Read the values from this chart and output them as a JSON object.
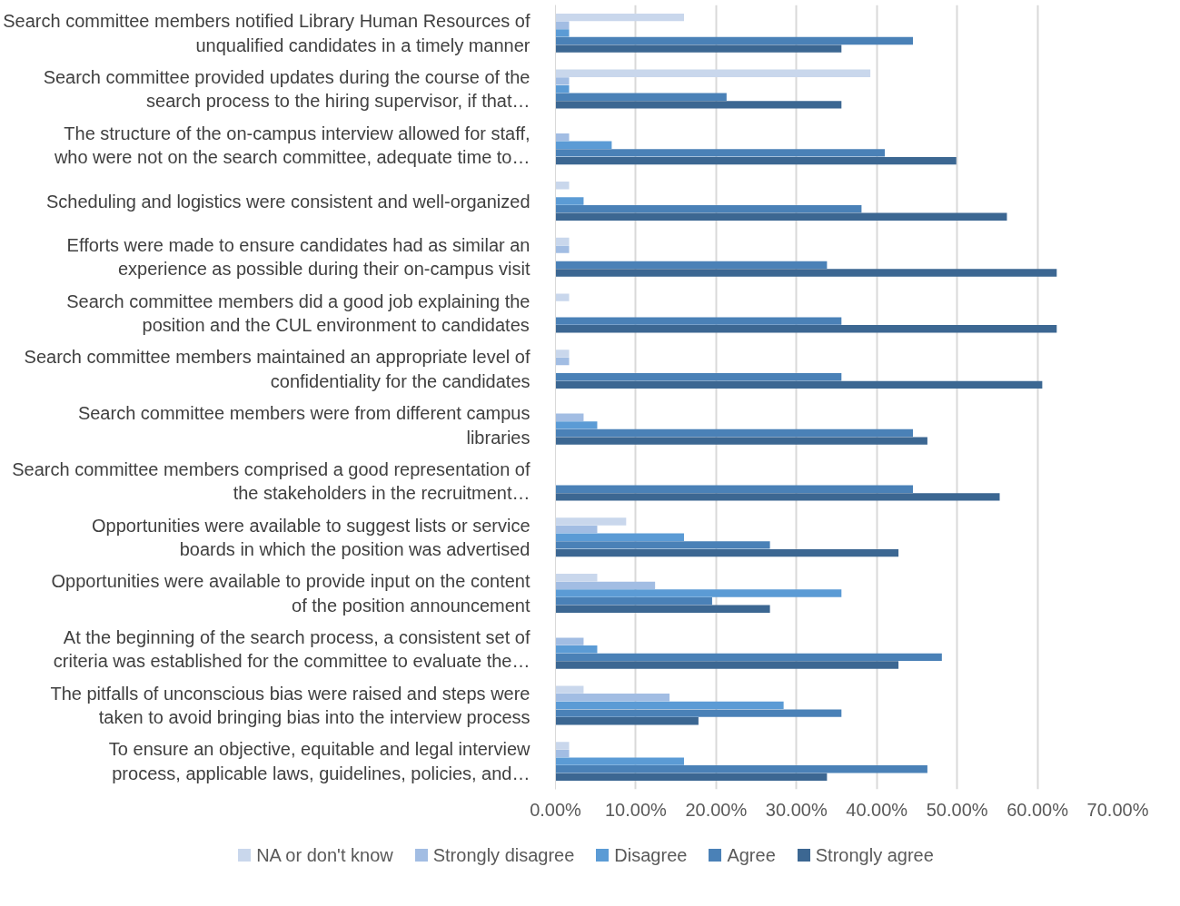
{
  "chart_data": {
    "type": "bar",
    "orientation": "horizontal",
    "categories": [
      "Search committee members notified Library Human Resources of unqualified candidates in a timely manner",
      "Search committee provided updates during the course of the search process to the hiring supervisor, if that…",
      "The structure of the on-campus interview allowed for staff, who were not on the search committee, adequate time to…",
      "Scheduling and logistics were consistent and well-organized",
      "Efforts were made to ensure candidates had as similar an experience as possible during their on-campus visit",
      "Search committee members did a good job explaining the position and the CUL environment to candidates",
      "Search committee members maintained an appropriate level of confidentiality for the candidates",
      "Search committee members were from different campus libraries",
      "Search committee members comprised a good representation of the stakeholders in the recruitment…",
      "Opportunities were available to suggest lists or service boards in which the position was advertised",
      "Opportunities were available to provide input on the content of the position announcement",
      "At the beginning of the search process, a consistent set of criteria was established for the committee to evaluate the…",
      "The pitfalls of unconscious bias were raised and steps were taken to avoid bringing bias into the interview process",
      "To ensure an objective, equitable and legal interview process, applicable laws, guidelines, policies, and…"
    ],
    "series": [
      {
        "name": "NA or don't know",
        "color": "#c9d7ec",
        "values": [
          16.0,
          39.2,
          0,
          1.7,
          1.7,
          1.7,
          1.7,
          0,
          0,
          8.8,
          5.2,
          0,
          3.5,
          1.7
        ]
      },
      {
        "name": "Strongly disagree",
        "color": "#a2bde3",
        "values": [
          1.7,
          1.7,
          1.7,
          0,
          1.7,
          0,
          1.7,
          3.5,
          0,
          5.2,
          12.4,
          3.5,
          14.2,
          1.7
        ]
      },
      {
        "name": "Disagree",
        "color": "#5b9bd5",
        "values": [
          1.7,
          1.7,
          7.0,
          3.5,
          0,
          0,
          0,
          5.2,
          0,
          16.0,
          35.6,
          5.2,
          28.4,
          16.0
        ]
      },
      {
        "name": "Agree",
        "color": "#4a81b7",
        "values": [
          44.5,
          21.3,
          41.0,
          38.1,
          33.8,
          35.6,
          35.6,
          44.5,
          44.5,
          26.7,
          19.5,
          48.1,
          35.6,
          46.3
        ]
      },
      {
        "name": "Strongly agree",
        "color": "#3c6792",
        "values": [
          35.6,
          35.6,
          49.9,
          56.2,
          62.4,
          62.4,
          60.6,
          46.3,
          55.3,
          42.7,
          26.7,
          42.7,
          17.8,
          33.8
        ]
      }
    ],
    "xlim": [
      0,
      70
    ],
    "xticks": [
      {
        "value": 0,
        "label": "0.00%"
      },
      {
        "value": 10,
        "label": "10.00%"
      },
      {
        "value": 20,
        "label": "20.00%"
      },
      {
        "value": 30,
        "label": "30.00%"
      },
      {
        "value": 40,
        "label": "40.00%"
      },
      {
        "value": 50,
        "label": "50.00%"
      },
      {
        "value": 60,
        "label": "60.00%"
      },
      {
        "value": 70,
        "label": "70.00%"
      }
    ],
    "grid": "x",
    "legend": "bottom"
  }
}
